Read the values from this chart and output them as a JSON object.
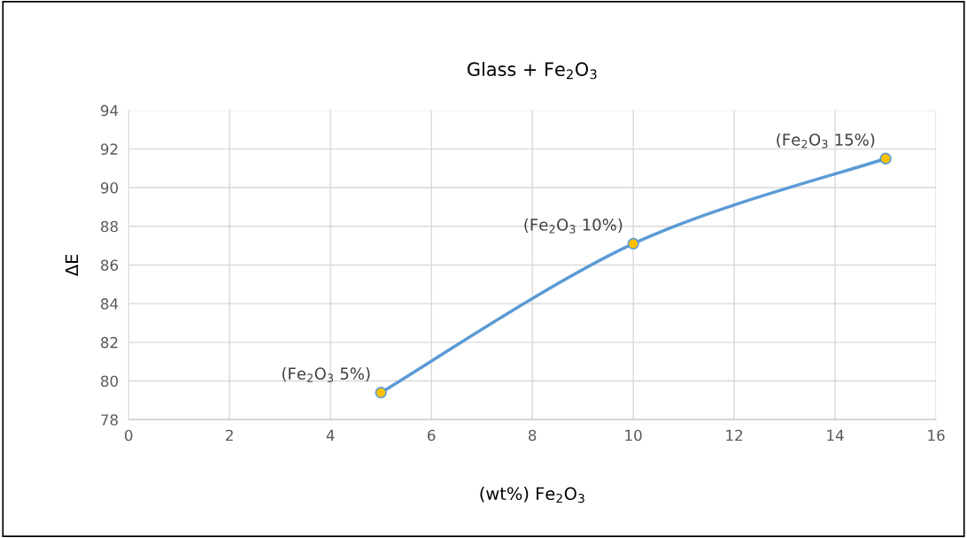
{
  "chart_data": {
    "type": "line",
    "title": "Glass + Fe$_{2}$O$_{3}$",
    "xlabel": "(wt%) Fe$_{2}$O$_{3}$",
    "ylabel": "ΔE",
    "x": [
      5,
      10,
      15
    ],
    "series": [
      {
        "color": "#5b9bd5",
        "colors": [
          "#ffc000",
          "#ffc000",
          "#ffc000"
        ],
        "values": [
          79.4,
          87.1,
          91.5
        ]
      }
    ],
    "annotations": [
      {
        "text": "(Fe$_{2}$O$_{3}$ 5%)",
        "x": 5,
        "y": 79.4
      },
      {
        "text": "(Fe$_{2}$O$_{3}$ 10%)",
        "x": 10,
        "y": 87.1
      },
      {
        "text": "(Fe$_{2}$O$_{3}$ 15%)",
        "x": 15,
        "y": 91.5
      }
    ],
    "xlim": [
      0,
      16
    ],
    "xticks": [
      0,
      2,
      4,
      6,
      8,
      10,
      12,
      14,
      16
    ],
    "ylim": [
      78,
      94
    ],
    "yticks": [
      78,
      80,
      82,
      84,
      86,
      88,
      90,
      92,
      94
    ],
    "grid": true,
    "marker": "circle",
    "line_style": "solid"
  }
}
